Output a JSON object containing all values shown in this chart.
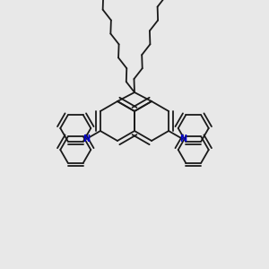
{
  "bg_color": "#e8e8e8",
  "bond_color": "#1a1a1a",
  "N_color": "#0000cc",
  "lw": 1.3,
  "figsize": [
    3.0,
    3.0
  ],
  "dpi": 100,
  "xlim": [
    0,
    300
  ],
  "ylim": [
    0,
    300
  ]
}
